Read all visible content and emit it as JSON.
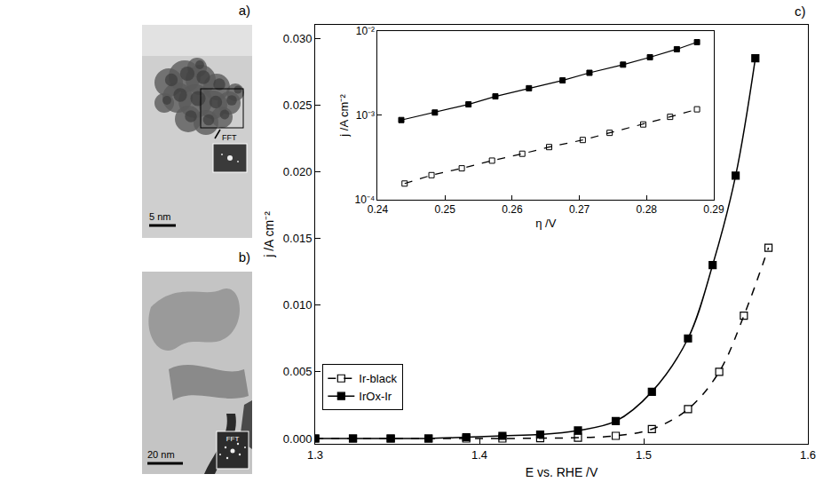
{
  "chart_data": [
    {
      "type": "line",
      "title": "c)",
      "x_label": "E vs. RHE /V",
      "y_label": "j /A cm⁻²",
      "xlim": [
        1.3,
        1.6
      ],
      "xticks": [
        1.3,
        1.4,
        1.5,
        1.6
      ],
      "ylim": [
        -0.0004,
        0.031
      ],
      "yticks": [
        {
          "value": 0,
          "label": "0.000"
        },
        0.005,
        {
          "value": 0.01,
          "label": "0.010"
        },
        0.015,
        {
          "value": 0.02,
          "label": "0.020"
        },
        0.025,
        {
          "value": 0.03,
          "label": "0.030"
        }
      ],
      "grid": false,
      "legend": "bottom left",
      "series": [
        {
          "name": "Ir-black",
          "color": "#000000",
          "marker": "square-open",
          "line_style": "dash",
          "x": [
            1.3,
            1.323,
            1.346,
            1.369,
            1.392,
            1.414,
            1.437,
            1.46,
            1.483,
            1.505,
            1.527,
            1.546,
            1.561,
            1.576
          ],
          "values": [
            0,
            0,
            0,
            0,
            0,
            0,
            2e-05,
            6e-05,
            0.0002,
            0.0007,
            0.0022,
            0.005,
            0.0092,
            0.0143
          ]
        },
        {
          "name": "IrOx-Ir",
          "color": "#000000",
          "marker": "square",
          "line_style": "solid",
          "x": [
            1.3,
            1.323,
            1.346,
            1.369,
            1.392,
            1.414,
            1.437,
            1.46,
            1.483,
            1.505,
            1.527,
            1.542,
            1.556,
            1.568
          ],
          "values": [
            0,
            0,
            0,
            0,
            0.0001,
            0.0002,
            0.0003,
            0.0006,
            0.0013,
            0.0035,
            0.0075,
            0.013,
            0.0197,
            0.0285
          ]
        }
      ]
    },
    {
      "type": "line",
      "x_label": "η /V",
      "y_label": "j /A cm⁻²",
      "log": "y",
      "xlim": [
        0.24,
        0.29
      ],
      "xticks": [
        0.24,
        0.25,
        0.26,
        0.27,
        0.28,
        0.29
      ],
      "ylim": [
        0.0001,
        0.01
      ],
      "yticks": [
        {
          "value": 0.0001,
          "label": "10⁻⁴"
        },
        {
          "value": 0.001,
          "label": "10⁻³"
        },
        {
          "value": 0.01,
          "label": "10⁻²"
        }
      ],
      "grid": false,
      "series": [
        {
          "color": "#000000",
          "marker": "square-open",
          "line_style": "dash",
          "x": [
            0.244,
            0.248,
            0.2525,
            0.257,
            0.2615,
            0.2655,
            0.2705,
            0.2745,
            0.2795,
            0.2835,
            0.2875
          ],
          "values": [
            0.000155,
            0.000195,
            0.000235,
            0.00029,
            0.00035,
            0.00042,
            0.00051,
            0.00062,
            0.00078,
            0.00096,
            0.00118
          ]
        },
        {
          "color": "#000000",
          "marker": "square",
          "line_style": "solid",
          "x": [
            0.2435,
            0.2485,
            0.2535,
            0.2575,
            0.2625,
            0.2675,
            0.2715,
            0.2765,
            0.2805,
            0.2845,
            0.2875
          ],
          "values": [
            0.00088,
            0.00108,
            0.00135,
            0.00168,
            0.0021,
            0.0026,
            0.0032,
            0.004,
            0.0049,
            0.0061,
            0.0074
          ]
        }
      ]
    }
  ],
  "panels": [
    {
      "label": "a)",
      "scale_bar": "5 nm",
      "fft_label": "FFT"
    },
    {
      "label": "b)",
      "scale_bar": "20 nm",
      "fft_label": "FFT"
    }
  ]
}
